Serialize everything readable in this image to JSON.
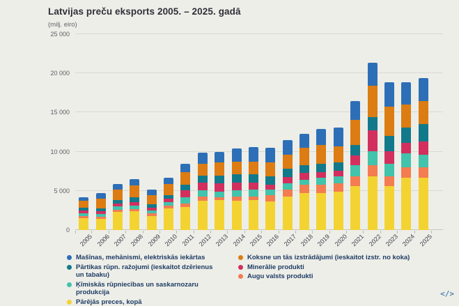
{
  "title": "Latvijas preču eksports 2005. – 2025. gadā",
  "subtitle": "(milj. eiro)",
  "embed_icon_label": "</>",
  "chart_data": {
    "type": "bar",
    "stacked": true,
    "title": "Latvijas preču eksports 2005. – 2025. gadā",
    "unit": "milj. eiro",
    "categories": [
      "2005",
      "2006",
      "2007",
      "2008",
      "2009",
      "2010",
      "2011",
      "2012",
      "2013",
      "2014",
      "2015",
      "2016",
      "2017",
      "2018",
      "2019",
      "2020",
      "2021",
      "2022",
      "2023",
      "2024",
      "2025"
    ],
    "ylim": [
      0,
      25000
    ],
    "yticks": [
      "0",
      "5 000",
      "10 000",
      "15 000",
      "20 000",
      "25 000"
    ],
    "grid": true,
    "legend_position": "bottom",
    "series_order": "bottom-to-top",
    "series": [
      {
        "name": "Pārējās preces, kopā",
        "color": "#f3d332",
        "values": [
          1510,
          1425,
          2315,
          2400,
          1805,
          2785,
          2965,
          3710,
          3800,
          3710,
          3800,
          3620,
          4245,
          4715,
          4715,
          4890,
          5605,
          6850,
          5605,
          6675,
          6675
        ]
      },
      {
        "name": "Augu valsts produkti",
        "color": "#f37c51",
        "values": [
          265,
          240,
          295,
          295,
          300,
          355,
          445,
          590,
          355,
          590,
          500,
          830,
          890,
          1070,
          1070,
          1070,
          1245,
          1425,
          1245,
          1335,
          1335
        ]
      },
      {
        "name": "Ķīmiskās rūpniecības un saskarnozaru produkcija",
        "color": "#41c3ac",
        "values": [
          355,
          355,
          390,
          445,
          355,
          445,
          745,
          745,
          740,
          745,
          890,
          740,
          800,
          625,
          890,
          890,
          1425,
          1780,
          1600,
          1780,
          1600
        ]
      },
      {
        "name": "Minerālie produkti",
        "color": "#d22f5f",
        "values": [
          355,
          385,
          385,
          445,
          385,
          390,
          890,
          1030,
          1040,
          1030,
          890,
          595,
          800,
          890,
          710,
          710,
          1245,
          2670,
          1600,
          1335,
          1690
        ]
      },
      {
        "name": "Pārtikas rūpn. ražojumi (ieskaitot dzērienus un tabaku)",
        "color": "#12798b",
        "values": [
          355,
          385,
          420,
          595,
          445,
          500,
          740,
          890,
          1030,
          1040,
          1040,
          1040,
          1120,
          980,
          1070,
          1070,
          1335,
          1690,
          1960,
          1960,
          2225
        ]
      },
      {
        "name": "Koksne un tās izstrādājumi (ieskaitot izstr. no koka)",
        "color": "#dc7c12",
        "values": [
          890,
          1245,
          1360,
          1490,
          1185,
          1395,
          1630,
          1490,
          1640,
          1630,
          1630,
          1780,
          1780,
          2225,
          2400,
          2045,
          3200,
          4005,
          3740,
          2935,
          2935
        ]
      },
      {
        "name": "Mašīnas, mehānismi, elektriskās iekārtas",
        "color": "#2d6fb7",
        "values": [
          445,
          660,
          710,
          800,
          685,
          830,
          1040,
          1425,
          1335,
          1635,
          1840,
          1920,
          1840,
          1780,
          2045,
          2400,
          2400,
          2935,
          3115,
          2850,
          2935
        ]
      }
    ]
  },
  "legend": {
    "columns": [
      [
        6,
        4,
        2,
        0
      ],
      [
        5,
        3,
        1
      ]
    ]
  }
}
